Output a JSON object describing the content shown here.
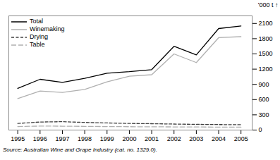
{
  "chart_data": {
    "type": "line",
    "x": [
      1995,
      1996,
      1997,
      1998,
      1999,
      2000,
      2001,
      2002,
      2003,
      2004,
      2005
    ],
    "series": [
      {
        "name": "Total",
        "color": "#000000",
        "line_style": "solid",
        "values": [
          820,
          1000,
          940,
          1020,
          1120,
          1150,
          1190,
          1650,
          1480,
          2000,
          2050
        ]
      },
      {
        "name": "Winemaking",
        "color": "#b0b0b0",
        "line_style": "solid",
        "values": [
          620,
          770,
          740,
          800,
          950,
          1060,
          1090,
          1500,
          1330,
          1820,
          1840
        ]
      },
      {
        "name": "Drying",
        "color": "#404040",
        "line_style": "dashed",
        "values": [
          130,
          158,
          165,
          150,
          140,
          130,
          125,
          118,
          112,
          108,
          105
        ]
      },
      {
        "name": "Table",
        "color": "#b0b0b0",
        "line_style": "longdash",
        "values": [
          68,
          78,
          76,
          72,
          68,
          66,
          64,
          62,
          60,
          58,
          57
        ]
      }
    ],
    "xlim": [
      1994.6,
      2005.5
    ],
    "xticks": [
      1995,
      1996,
      1997,
      1998,
      1999,
      2000,
      2001,
      2002,
      2003,
      2004,
      2005
    ],
    "ylim": [
      0,
      2250
    ],
    "yticks": [
      0,
      300,
      600,
      900,
      1200,
      1500,
      1800,
      2100
    ],
    "ylabel": "'000 t",
    "caption": "Source: Australian Wine and Grape Industry (cat. no. 1329.0).",
    "legend": "upper left",
    "grid": false
  }
}
